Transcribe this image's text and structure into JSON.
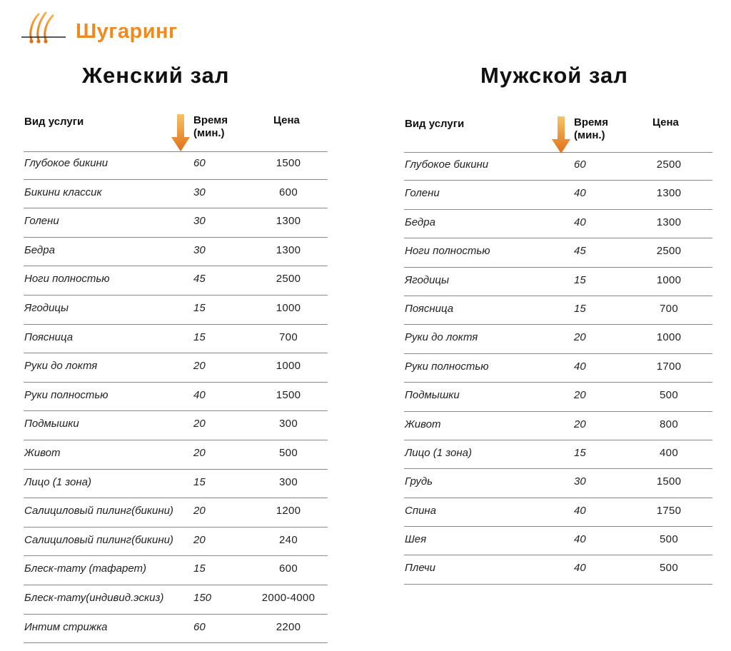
{
  "brand": {
    "title": "Шугаринг",
    "logo_icon": "sugar-strands-icon",
    "accent": "#ef8a1f"
  },
  "women": {
    "title": "Женский зал",
    "headers": {
      "service": "Вид услуги",
      "time_line1": "Время",
      "time_line2": "(мин.)",
      "price": "Цена"
    },
    "rows": [
      {
        "service": "Глубокое бикини",
        "time": "60",
        "price": "1500"
      },
      {
        "service": "Бикини классик",
        "time": "30",
        "price": "600"
      },
      {
        "service": "Голени",
        "time": "30",
        "price": "1300"
      },
      {
        "service": "Бедра",
        "time": "30",
        "price": "1300"
      },
      {
        "service": "Ноги полностью",
        "time": "45",
        "price": "2500"
      },
      {
        "service": "Ягодицы",
        "time": "15",
        "price": "1000"
      },
      {
        "service": "Поясница",
        "time": "15",
        "price": "700"
      },
      {
        "service": "Руки до локтя",
        "time": "20",
        "price": "1000"
      },
      {
        "service": "Руки полностью",
        "time": "40",
        "price": "1500"
      },
      {
        "service": "Подмышки",
        "time": "20",
        "price": "300"
      },
      {
        "service": "Живот",
        "time": "20",
        "price": "500"
      },
      {
        "service": "Лицо (1 зона)",
        "time": "15",
        "price": "300"
      },
      {
        "service": "Салициловый пилинг(бикини)",
        "time": "20",
        "price": "1200"
      },
      {
        "service": "Салициловый пилинг(бикини)",
        "time": "20",
        "price": "240"
      },
      {
        "service": "Блеск-тату (тафарет)",
        "time": "15",
        "price": "600"
      },
      {
        "service": "Блеск-тату(индивид.эскиз)",
        "time": "150",
        "price": "2000-4000"
      },
      {
        "service": "Интим стрижка",
        "time": "60",
        "price": "2200"
      }
    ]
  },
  "men": {
    "title": "Мужской зал",
    "headers": {
      "service": "Вид услуги",
      "time_line1": "Время",
      "time_line2": "(мин.)",
      "price": "Цена"
    },
    "rows": [
      {
        "service": "Глубокое бикини",
        "time": "60",
        "price": "2500"
      },
      {
        "service": "Голени",
        "time": "40",
        "price": "1300"
      },
      {
        "service": "Бедра",
        "time": "40",
        "price": "1300"
      },
      {
        "service": "Ноги полностью",
        "time": "45",
        "price": "2500"
      },
      {
        "service": "Ягодицы",
        "time": "15",
        "price": "1000"
      },
      {
        "service": "Поясница",
        "time": "15",
        "price": "700"
      },
      {
        "service": "Руки до локтя",
        "time": "20",
        "price": "1000"
      },
      {
        "service": "Руки полностью",
        "time": "40",
        "price": "1700"
      },
      {
        "service": "Подмышки",
        "time": "20",
        "price": "500"
      },
      {
        "service": "Живот",
        "time": "20",
        "price": "800"
      },
      {
        "service": "Лицо (1 зона)",
        "time": "15",
        "price": "400"
      },
      {
        "service": "Грудь",
        "time": "30",
        "price": "1500"
      },
      {
        "service": "Спина",
        "time": "40",
        "price": "1750"
      },
      {
        "service": "Шея",
        "time": "40",
        "price": "500"
      },
      {
        "service": "Плечи",
        "time": "40",
        "price": "500"
      }
    ]
  },
  "icons": {
    "sort_arrow": "arrow-down-icon"
  }
}
